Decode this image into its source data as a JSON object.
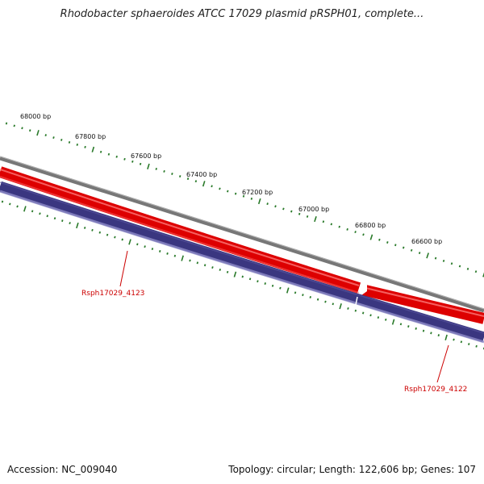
{
  "title": "Rhodobacter sphaeroides ATCC 17029 plasmid pRSPH01, complete...",
  "footer": {
    "accession": "Accession: NC_009040",
    "summary": "Topology: circular; Length: 122,606 bp; Genes: 107"
  },
  "scale_labels": [
    {
      "text": "68000 bp"
    },
    {
      "text": "67800 bp"
    },
    {
      "text": "67600 bp"
    },
    {
      "text": "67400 bp"
    },
    {
      "text": "67200 bp"
    },
    {
      "text": "67000 bp"
    },
    {
      "text": "66800 bp"
    },
    {
      "text": "66600 bp"
    }
  ],
  "genes": [
    {
      "name": "Rsph17029_4123"
    },
    {
      "name": "Rsph17029_4122"
    }
  ],
  "colors": {
    "backbone": "#808080",
    "forward_gene": "#ee1111",
    "reverse_gene": "#3a3680",
    "ticks": "#2a7a2a",
    "gene_label": "#cc0000"
  }
}
